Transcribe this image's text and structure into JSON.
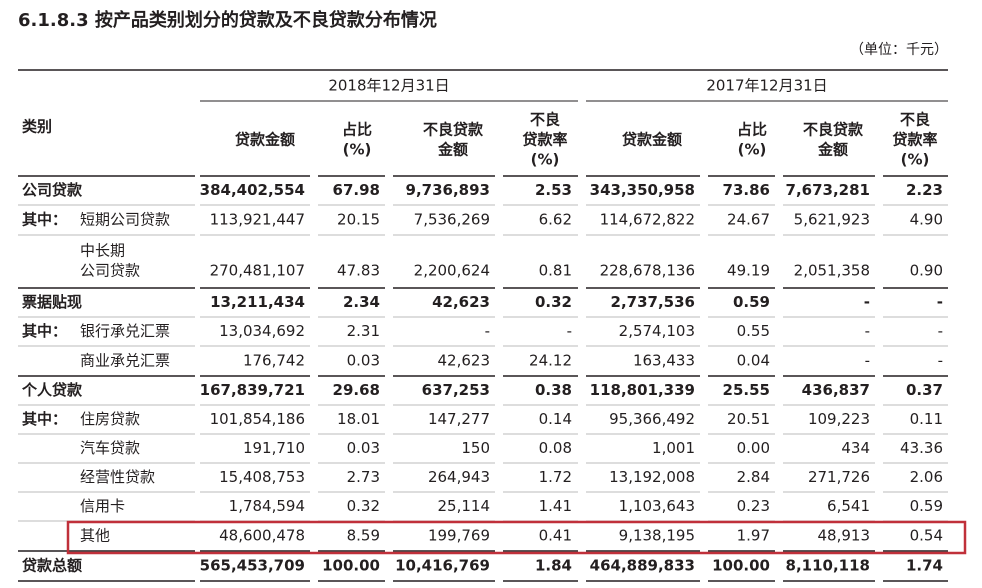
{
  "header": {
    "title": "6.1.8.3 按产品类别划分的贷款及不良贷款分布情况",
    "unit": "（单位：千元）"
  },
  "table": {
    "category_header": "类别",
    "groups": [
      "2018年12月31日",
      "2017年12月31日"
    ],
    "columns": [
      [
        "贷款金额"
      ],
      [
        "占比",
        "(%)"
      ],
      [
        "不良贷款",
        "金额"
      ],
      [
        "不良",
        "贷款率",
        "(%)"
      ],
      [
        "贷款金额"
      ],
      [
        "占比",
        "(%)"
      ],
      [
        "不良贷款",
        "金额"
      ],
      [
        "不良",
        "贷款率",
        "(%)"
      ]
    ],
    "rows": [
      {
        "label": [
          "公司贷款"
        ],
        "cells": [
          "384,402,554",
          "67.98",
          "9,736,893",
          "2.53",
          "343,350,958",
          "73.86",
          "7,673,281",
          "2.23"
        ]
      },
      {
        "prefix": "其中：",
        "label": [
          "短期公司贷款"
        ],
        "cells": [
          "113,921,447",
          "20.15",
          "7,536,269",
          "6.62",
          "114,672,822",
          "24.67",
          "5,621,923",
          "4.90"
        ]
      },
      {
        "label": [
          "中长期",
          "公司贷款"
        ],
        "cells": [
          "270,481,107",
          "47.83",
          "2,200,624",
          "0.81",
          "228,678,136",
          "49.19",
          "2,051,358",
          "0.90"
        ]
      },
      {
        "label": [
          "票据贴现"
        ],
        "cells": [
          "13,211,434",
          "2.34",
          "42,623",
          "0.32",
          "2,737,536",
          "0.59",
          "-",
          "-"
        ]
      },
      {
        "prefix": "其中：",
        "label": [
          "银行承兑汇票"
        ],
        "cells": [
          "13,034,692",
          "2.31",
          "-",
          "-",
          "2,574,103",
          "0.55",
          "-",
          "-"
        ]
      },
      {
        "label": [
          "商业承兑汇票"
        ],
        "cells": [
          "176,742",
          "0.03",
          "42,623",
          "24.12",
          "163,433",
          "0.04",
          "-",
          "-"
        ]
      },
      {
        "label": [
          "个人贷款"
        ],
        "cells": [
          "167,839,721",
          "29.68",
          "637,253",
          "0.38",
          "118,801,339",
          "25.55",
          "436,837",
          "0.37"
        ]
      },
      {
        "prefix": "其中：",
        "label": [
          "住房贷款"
        ],
        "cells": [
          "101,854,186",
          "18.01",
          "147,277",
          "0.14",
          "95,366,492",
          "20.51",
          "109,223",
          "0.11"
        ]
      },
      {
        "label": [
          "汽车贷款"
        ],
        "cells": [
          "191,710",
          "0.03",
          "150",
          "0.08",
          "1,001",
          "0.00",
          "434",
          "43.36"
        ]
      },
      {
        "label": [
          "经营性贷款"
        ],
        "cells": [
          "15,408,753",
          "2.73",
          "264,943",
          "1.72",
          "13,192,008",
          "2.84",
          "271,726",
          "2.06"
        ]
      },
      {
        "label": [
          "信用卡"
        ],
        "cells": [
          "1,784,594",
          "0.32",
          "25,114",
          "1.41",
          "1,103,643",
          "0.23",
          "6,541",
          "0.59"
        ]
      },
      {
        "label": [
          "其他"
        ],
        "cells": [
          "48,600,478",
          "8.59",
          "199,769",
          "0.41",
          "9,138,195",
          "1.97",
          "48,913",
          "0.54"
        ]
      },
      {
        "label": [
          "贷款总额"
        ],
        "cells": [
          "565,453,709",
          "100.00",
          "10,416,769",
          "1.84",
          "464,889,833",
          "100.00",
          "8,110,118",
          "1.74"
        ]
      }
    ]
  }
}
